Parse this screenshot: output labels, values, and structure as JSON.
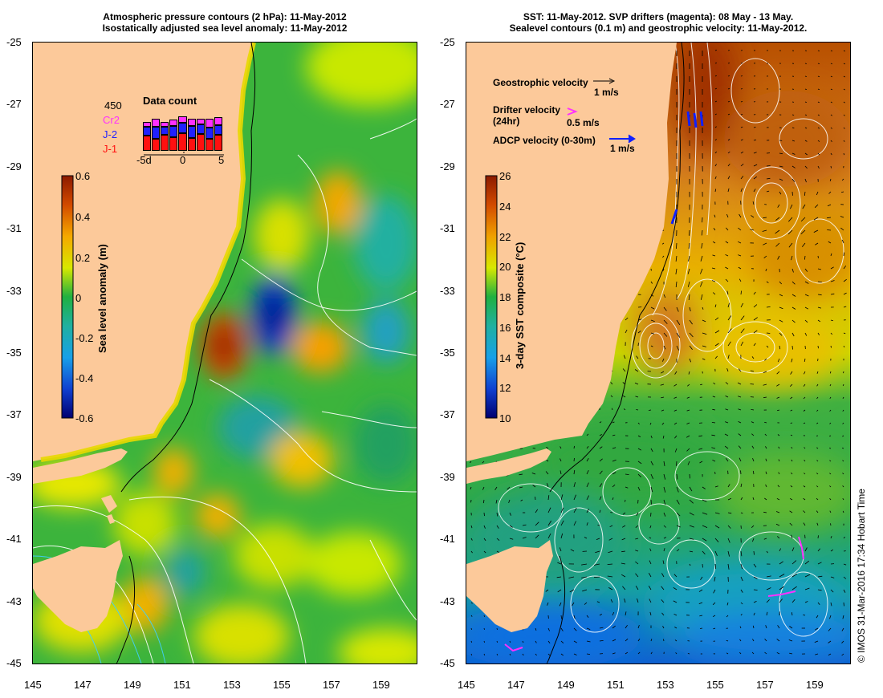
{
  "left": {
    "title_line1": "Atmospheric pressure contours (2 hPa): 11-May-2012",
    "title_line2": "Isostatically adjusted sea level anomaly: 11-May-2012",
    "colorbar": {
      "label": "Sea level anomaly (m)",
      "ticks": [
        "0.6",
        "0.4",
        "0.2",
        "0",
        "-0.2",
        "-0.4",
        "-0.6"
      ]
    },
    "inset": {
      "title": "Data count",
      "max_label": "450",
      "legend": [
        {
          "name": "Cr2",
          "color": "#ff30ff"
        },
        {
          "name": "J-2",
          "color": "#2020ff"
        },
        {
          "name": "J-1",
          "color": "#ff1010"
        }
      ],
      "x_ticks": [
        "-5d",
        "0",
        "5"
      ],
      "bars": [
        {
          "j1": 0.38,
          "j2": 0.22,
          "cr2": 0.12
        },
        {
          "j1": 0.3,
          "j2": 0.3,
          "cr2": 0.2
        },
        {
          "j1": 0.4,
          "j2": 0.2,
          "cr2": 0.12
        },
        {
          "j1": 0.34,
          "j2": 0.28,
          "cr2": 0.16
        },
        {
          "j1": 0.45,
          "j2": 0.26,
          "cr2": 0.16
        },
        {
          "j1": 0.32,
          "j2": 0.3,
          "cr2": 0.18
        },
        {
          "j1": 0.42,
          "j2": 0.24,
          "cr2": 0.14
        },
        {
          "j1": 0.3,
          "j2": 0.28,
          "cr2": 0.22
        },
        {
          "j1": 0.4,
          "j2": 0.24,
          "cr2": 0.2
        }
      ]
    }
  },
  "right": {
    "title_line1": "SST: 11-May-2012. SVP drifters (magenta): 08 May - 13 May.",
    "title_line2": "Sealevel contours (0.1 m) and geostrophic velocity: 11-May-2012.",
    "colorbar": {
      "label": "3-day SST composite (°C)",
      "ticks": [
        "26",
        "24",
        "22",
        "20",
        "18",
        "16",
        "14",
        "12",
        "10"
      ]
    },
    "legend": {
      "geo_label": "Geostrophic velocity",
      "geo_unit": "1 m/s",
      "drifter_label": "Drifter velocity",
      "drifter_sub": "(24hr)",
      "drifter_unit": "0.5 m/s",
      "adcp_label": "ADCP velocity (0-30m)",
      "adcp_unit": "1 m/s"
    }
  },
  "axes": {
    "lat_ticks": [
      "-25",
      "-27",
      "-29",
      "-31",
      "-33",
      "-35",
      "-37",
      "-39",
      "-41",
      "-43",
      "-45"
    ],
    "lon_ticks": [
      "145",
      "147",
      "149",
      "151",
      "153",
      "155",
      "157",
      "159"
    ]
  },
  "credit": "© IMOS 31-Mar-2016 17:34 Hobart Time",
  "colors": {
    "land": "#fcc99a",
    "ocean_sla": "#3cb43c",
    "ocean_sst_warm": "#d27a1e",
    "ocean_sst_cool": "#2ea84a"
  }
}
